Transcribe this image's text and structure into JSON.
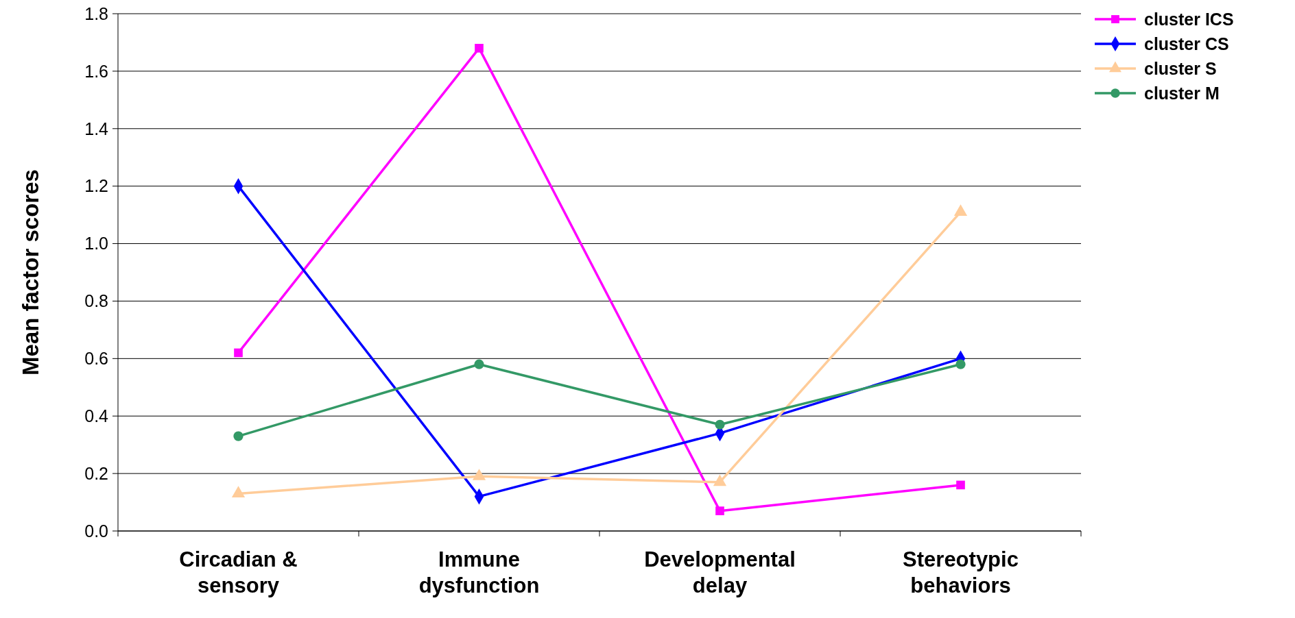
{
  "chart_data": {
    "type": "line",
    "ylabel": "Mean factor scores",
    "categories": [
      "Circadian & sensory",
      "Immune dysfunction",
      "Developmental delay",
      "Stereotypic behaviors"
    ],
    "ylim": [
      0,
      1.8
    ],
    "yticks": [
      {
        "value": 0,
        "label": "0.0"
      },
      {
        "value": 0.2,
        "label": "0.2"
      },
      {
        "value": 0.4,
        "label": "0.4"
      },
      {
        "value": 0.6,
        "label": "0.6"
      },
      {
        "value": 0.8,
        "label": "0.8"
      },
      {
        "value": 1,
        "label": "1.0"
      },
      {
        "value": 1.2,
        "label": "1.2"
      },
      {
        "value": 1.4,
        "label": "1.4"
      },
      {
        "value": 1.6,
        "label": "1.6"
      },
      {
        "value": 1.8,
        "label": "1.8"
      }
    ],
    "grid": "y",
    "legend": "top right",
    "line_style": "solid",
    "series": [
      {
        "name": "cluster ICS",
        "color": "#ff00ff",
        "marker": "square",
        "values": [
          0.62,
          1.68,
          0.07,
          0.16
        ]
      },
      {
        "name": "cluster CS",
        "color": "#0000ff",
        "marker": "diamond",
        "values": [
          1.2,
          0.12,
          0.34,
          0.6
        ]
      },
      {
        "name": "cluster S",
        "color": "#ffcc99",
        "marker": "triangle",
        "values": [
          0.13,
          0.19,
          0.17,
          1.11
        ]
      },
      {
        "name": "cluster M",
        "color": "#339966",
        "marker": "circle",
        "values": [
          0.33,
          0.58,
          0.37,
          0.58
        ]
      }
    ]
  }
}
